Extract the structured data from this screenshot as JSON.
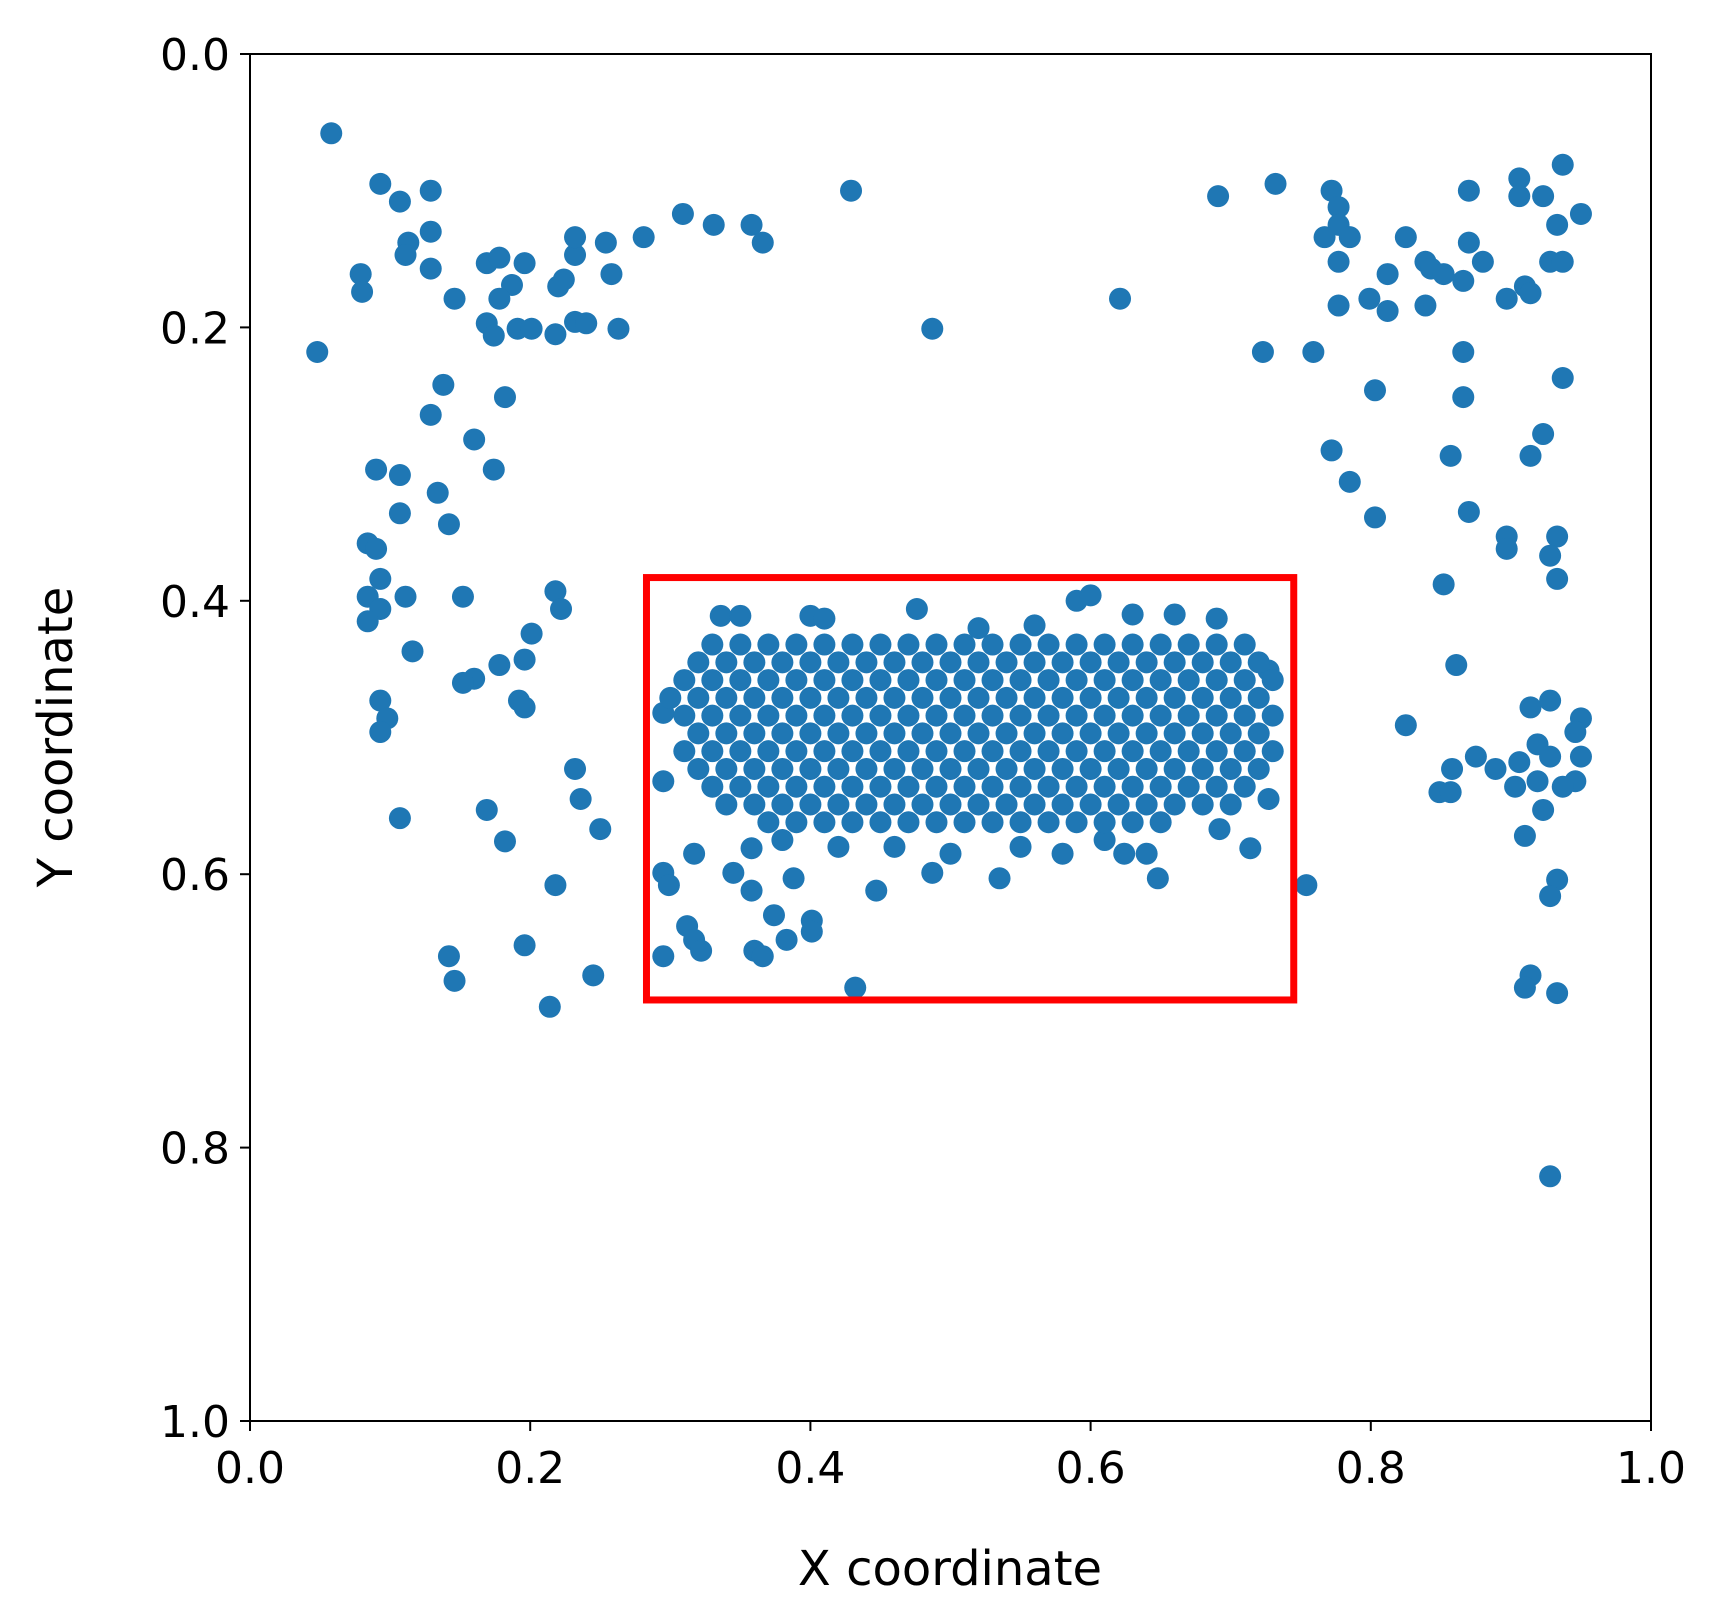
{
  "chart_data": {
    "type": "scatter",
    "xlabel": "X coordinate",
    "ylabel": "Y coordinate",
    "color": "#1f77b4",
    "xlim": [
      0,
      1
    ],
    "ylim": [
      0,
      1
    ],
    "y_inverted": true,
    "xticks": [
      {
        "value": 0,
        "label": "0.0"
      },
      {
        "value": 0.2,
        "label": "0.2"
      },
      {
        "value": 0.4,
        "label": "0.4"
      },
      {
        "value": 0.6,
        "label": "0.6"
      },
      {
        "value": 0.8,
        "label": "0.8"
      },
      {
        "value": 1,
        "label": "1.0"
      }
    ],
    "yticks": [
      {
        "value": 0,
        "label": "0.0"
      },
      {
        "value": 0.2,
        "label": "0.2"
      },
      {
        "value": 0.4,
        "label": "0.4"
      },
      {
        "value": 0.6,
        "label": "0.6"
      },
      {
        "value": 0.8,
        "label": "0.8"
      },
      {
        "value": 1,
        "label": "1.0"
      }
    ],
    "highlight_box": {
      "x": [
        0.283,
        0.745
      ],
      "y": [
        0.383,
        0.692
      ],
      "color": "#ff0000"
    },
    "x": [
      0.058,
      0.048,
      0.093,
      0.107,
      0.129,
      0.129,
      0.113,
      0.111,
      0.129,
      0.079,
      0.08,
      0.146,
      0.169,
      0.178,
      0.196,
      0.187,
      0.178,
      0.169,
      0.174,
      0.191,
      0.201,
      0.218,
      0.232,
      0.24,
      0.263,
      0.22,
      0.224,
      0.232,
      0.232,
      0.254,
      0.258,
      0.281,
      0.309,
      0.331,
      0.358,
      0.366,
      0.429,
      0.487,
      0.138,
      0.129,
      0.182,
      0.16,
      0.174,
      0.09,
      0.107,
      0.134,
      0.107,
      0.142,
      0.084,
      0.09,
      0.093,
      0.084,
      0.093,
      0.084,
      0.111,
      0.152,
      0.218,
      0.222,
      0.201,
      0.196,
      0.178,
      0.16,
      0.152,
      0.116,
      0.093,
      0.098,
      0.093,
      0.192,
      0.196,
      0.107,
      0.169,
      0.182,
      0.232,
      0.236,
      0.25,
      0.218,
      0.142,
      0.146,
      0.196,
      0.245,
      0.214,
      0.691,
      0.732,
      0.621,
      0.723,
      0.759,
      0.772,
      0.777,
      0.777,
      0.767,
      0.785,
      0.777,
      0.777,
      0.799,
      0.812,
      0.812,
      0.825,
      0.839,
      0.843,
      0.852,
      0.839,
      0.866,
      0.87,
      0.88,
      0.87,
      0.906,
      0.906,
      0.923,
      0.937,
      0.95,
      0.933,
      0.928,
      0.937,
      0.91,
      0.897,
      0.914,
      0.803,
      0.866,
      0.866,
      0.937,
      0.923,
      0.914,
      0.857,
      0.772,
      0.785,
      0.803,
      0.87,
      0.897,
      0.897,
      0.933,
      0.928,
      0.933,
      0.852,
      0.861,
      0.825,
      0.914,
      0.928,
      0.95,
      0.946,
      0.919,
      0.875,
      0.858,
      0.889,
      0.906,
      0.928,
      0.95,
      0.946,
      0.937,
      0.919,
      0.903,
      0.849,
      0.857,
      0.923,
      0.91,
      0.754,
      0.933,
      0.928,
      0.914,
      0.91,
      0.933,
      0.928,
      0.295,
      0.295,
      0.295,
      0.299,
      0.295,
      0.312,
      0.317,
      0.322,
      0.317,
      0.358,
      0.345,
      0.358,
      0.374,
      0.383,
      0.36,
      0.366,
      0.401,
      0.401,
      0.388,
      0.432,
      0.447,
      0.487,
      0.535,
      0.648,
      0.714,
      0.727,
      0.727,
      0.624,
      0.692,
      0.336,
      0.35,
      0.4,
      0.41,
      0.476,
      0.59,
      0.6,
      0.63,
      0.66,
      0.69,
      0.56,
      0.52,
      0.42,
      0.5,
      0.55,
      0.58,
      0.61,
      0.64,
      0.38,
      0.46,
      0.33,
      0.35,
      0.37,
      0.39,
      0.41,
      0.43,
      0.45,
      0.47,
      0.49,
      0.51,
      0.53,
      0.55,
      0.57,
      0.59,
      0.61,
      0.63,
      0.65,
      0.67,
      0.69,
      0.71,
      0.32,
      0.34,
      0.36,
      0.38,
      0.4,
      0.42,
      0.44,
      0.46,
      0.48,
      0.5,
      0.52,
      0.54,
      0.56,
      0.58,
      0.6,
      0.62,
      0.64,
      0.66,
      0.68,
      0.7,
      0.72,
      0.31,
      0.33,
      0.35,
      0.37,
      0.39,
      0.41,
      0.43,
      0.45,
      0.47,
      0.49,
      0.51,
      0.53,
      0.55,
      0.57,
      0.59,
      0.61,
      0.63,
      0.65,
      0.67,
      0.69,
      0.71,
      0.73,
      0.3,
      0.32,
      0.34,
      0.36,
      0.38,
      0.4,
      0.42,
      0.44,
      0.46,
      0.48,
      0.5,
      0.52,
      0.54,
      0.56,
      0.58,
      0.6,
      0.62,
      0.64,
      0.66,
      0.68,
      0.7,
      0.72,
      0.31,
      0.33,
      0.35,
      0.37,
      0.39,
      0.41,
      0.43,
      0.45,
      0.47,
      0.49,
      0.51,
      0.53,
      0.55,
      0.57,
      0.59,
      0.61,
      0.63,
      0.65,
      0.67,
      0.69,
      0.71,
      0.73,
      0.32,
      0.34,
      0.36,
      0.38,
      0.4,
      0.42,
      0.44,
      0.46,
      0.48,
      0.5,
      0.52,
      0.54,
      0.56,
      0.58,
      0.6,
      0.62,
      0.64,
      0.66,
      0.68,
      0.7,
      0.72,
      0.31,
      0.33,
      0.35,
      0.37,
      0.39,
      0.41,
      0.43,
      0.45,
      0.47,
      0.49,
      0.51,
      0.53,
      0.55,
      0.57,
      0.59,
      0.61,
      0.63,
      0.65,
      0.67,
      0.69,
      0.71,
      0.73,
      0.32,
      0.34,
      0.36,
      0.38,
      0.4,
      0.42,
      0.44,
      0.46,
      0.48,
      0.5,
      0.52,
      0.54,
      0.56,
      0.58,
      0.6,
      0.62,
      0.64,
      0.66,
      0.68,
      0.7,
      0.72,
      0.33,
      0.35,
      0.37,
      0.39,
      0.41,
      0.43,
      0.45,
      0.47,
      0.49,
      0.51,
      0.53,
      0.55,
      0.57,
      0.59,
      0.61,
      0.63,
      0.65,
      0.67,
      0.69,
      0.71,
      0.34,
      0.36,
      0.38,
      0.4,
      0.42,
      0.44,
      0.46,
      0.48,
      0.5,
      0.52,
      0.54,
      0.56,
      0.58,
      0.6,
      0.62,
      0.64,
      0.66,
      0.68,
      0.7,
      0.37,
      0.39,
      0.41,
      0.43,
      0.45,
      0.47,
      0.49,
      0.51,
      0.53,
      0.55,
      0.57,
      0.59,
      0.61,
      0.63,
      0.65
    ],
    "values": [
      0.058,
      0.218,
      0.095,
      0.108,
      0.1,
      0.13,
      0.138,
      0.147,
      0.157,
      0.161,
      0.174,
      0.179,
      0.153,
      0.149,
      0.153,
      0.169,
      0.179,
      0.197,
      0.206,
      0.201,
      0.201,
      0.205,
      0.196,
      0.197,
      0.201,
      0.17,
      0.165,
      0.147,
      0.134,
      0.138,
      0.161,
      0.134,
      0.117,
      0.125,
      0.125,
      0.138,
      0.1,
      0.201,
      0.242,
      0.264,
      0.251,
      0.282,
      0.304,
      0.304,
      0.308,
      0.321,
      0.336,
      0.344,
      0.358,
      0.362,
      0.384,
      0.397,
      0.406,
      0.415,
      0.397,
      0.397,
      0.393,
      0.406,
      0.424,
      0.443,
      0.447,
      0.457,
      0.46,
      0.437,
      0.473,
      0.486,
      0.496,
      0.473,
      0.478,
      0.559,
      0.553,
      0.576,
      0.523,
      0.545,
      0.567,
      0.608,
      0.66,
      0.678,
      0.652,
      0.674,
      0.697,
      0.104,
      0.095,
      0.179,
      0.218,
      0.218,
      0.1,
      0.112,
      0.125,
      0.134,
      0.134,
      0.152,
      0.184,
      0.179,
      0.161,
      0.188,
      0.134,
      0.152,
      0.157,
      0.161,
      0.184,
      0.166,
      0.138,
      0.152,
      0.1,
      0.091,
      0.104,
      0.104,
      0.081,
      0.117,
      0.125,
      0.152,
      0.152,
      0.17,
      0.179,
      0.175,
      0.246,
      0.218,
      0.251,
      0.237,
      0.278,
      0.294,
      0.294,
      0.29,
      0.313,
      0.339,
      0.335,
      0.353,
      0.362,
      0.353,
      0.367,
      0.384,
      0.388,
      0.447,
      0.491,
      0.478,
      0.473,
      0.486,
      0.496,
      0.505,
      0.514,
      0.523,
      0.523,
      0.518,
      0.514,
      0.514,
      0.532,
      0.536,
      0.532,
      0.536,
      0.54,
      0.54,
      0.553,
      0.572,
      0.608,
      0.604,
      0.616,
      0.674,
      0.683,
      0.687,
      0.821,
      0.482,
      0.532,
      0.599,
      0.608,
      0.66,
      0.638,
      0.648,
      0.656,
      0.585,
      0.581,
      0.599,
      0.612,
      0.63,
      0.648,
      0.656,
      0.66,
      0.634,
      0.642,
      0.603,
      0.683,
      0.612,
      0.599,
      0.603,
      0.603,
      0.581,
      0.545,
      0.451,
      0.585,
      0.567,
      0.411,
      0.411,
      0.411,
      0.413,
      0.406,
      0.4,
      0.396,
      0.41,
      0.41,
      0.413,
      0.418,
      0.42,
      0.58,
      0.585,
      0.58,
      0.585,
      0.575,
      0.585,
      0.575,
      0.58,
      0.432,
      0.432,
      0.432,
      0.432,
      0.432,
      0.432,
      0.432,
      0.432,
      0.432,
      0.432,
      0.432,
      0.432,
      0.432,
      0.432,
      0.432,
      0.432,
      0.432,
      0.432,
      0.432,
      0.432,
      0.445,
      0.445,
      0.445,
      0.445,
      0.445,
      0.445,
      0.445,
      0.445,
      0.445,
      0.445,
      0.445,
      0.445,
      0.445,
      0.445,
      0.445,
      0.445,
      0.445,
      0.445,
      0.445,
      0.445,
      0.445,
      0.458,
      0.458,
      0.458,
      0.458,
      0.458,
      0.458,
      0.458,
      0.458,
      0.458,
      0.458,
      0.458,
      0.458,
      0.458,
      0.458,
      0.458,
      0.458,
      0.458,
      0.458,
      0.458,
      0.458,
      0.458,
      0.458,
      0.471,
      0.471,
      0.471,
      0.471,
      0.471,
      0.471,
      0.471,
      0.471,
      0.471,
      0.471,
      0.471,
      0.471,
      0.471,
      0.471,
      0.471,
      0.471,
      0.471,
      0.471,
      0.471,
      0.471,
      0.471,
      0.471,
      0.484,
      0.484,
      0.484,
      0.484,
      0.484,
      0.484,
      0.484,
      0.484,
      0.484,
      0.484,
      0.484,
      0.484,
      0.484,
      0.484,
      0.484,
      0.484,
      0.484,
      0.484,
      0.484,
      0.484,
      0.484,
      0.484,
      0.497,
      0.497,
      0.497,
      0.497,
      0.497,
      0.497,
      0.497,
      0.497,
      0.497,
      0.497,
      0.497,
      0.497,
      0.497,
      0.497,
      0.497,
      0.497,
      0.497,
      0.497,
      0.497,
      0.497,
      0.497,
      0.51,
      0.51,
      0.51,
      0.51,
      0.51,
      0.51,
      0.51,
      0.51,
      0.51,
      0.51,
      0.51,
      0.51,
      0.51,
      0.51,
      0.51,
      0.51,
      0.51,
      0.51,
      0.51,
      0.51,
      0.51,
      0.51,
      0.523,
      0.523,
      0.523,
      0.523,
      0.523,
      0.523,
      0.523,
      0.523,
      0.523,
      0.523,
      0.523,
      0.523,
      0.523,
      0.523,
      0.523,
      0.523,
      0.523,
      0.523,
      0.523,
      0.523,
      0.523,
      0.536,
      0.536,
      0.536,
      0.536,
      0.536,
      0.536,
      0.536,
      0.536,
      0.536,
      0.536,
      0.536,
      0.536,
      0.536,
      0.536,
      0.536,
      0.536,
      0.536,
      0.536,
      0.536,
      0.536,
      0.549,
      0.549,
      0.549,
      0.549,
      0.549,
      0.549,
      0.549,
      0.549,
      0.549,
      0.549,
      0.549,
      0.549,
      0.549,
      0.549,
      0.549,
      0.549,
      0.549,
      0.549,
      0.549,
      0.562,
      0.562,
      0.562,
      0.562,
      0.562,
      0.562,
      0.562,
      0.562,
      0.562,
      0.562,
      0.562,
      0.562,
      0.562,
      0.562,
      0.562
    ]
  }
}
